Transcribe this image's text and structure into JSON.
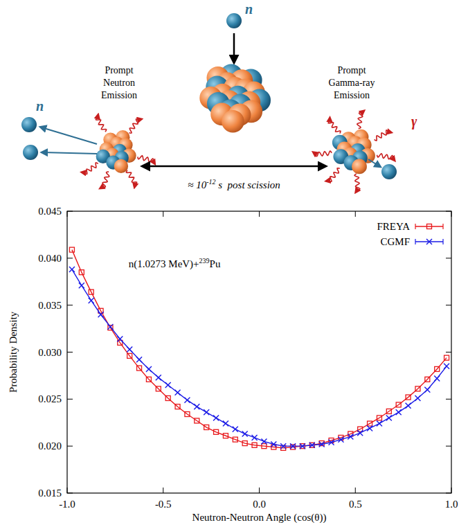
{
  "chart_data": {
    "type": "line",
    "annotation": {
      "prefix": "n(1.0273 MeV)+",
      "superscript": "239",
      "suffix": "Pu"
    },
    "x_label": "Neutron-Neutron Angle (cos(θ))",
    "y_label": "Probability Density",
    "x": [
      -0.975,
      -0.925,
      -0.875,
      -0.825,
      -0.775,
      -0.725,
      -0.675,
      -0.625,
      -0.575,
      -0.525,
      -0.475,
      -0.425,
      -0.375,
      -0.325,
      -0.275,
      -0.225,
      -0.175,
      -0.125,
      -0.075,
      -0.025,
      0.025,
      0.075,
      0.125,
      0.175,
      0.225,
      0.275,
      0.325,
      0.375,
      0.425,
      0.475,
      0.525,
      0.575,
      0.625,
      0.675,
      0.725,
      0.775,
      0.825,
      0.875,
      0.925,
      0.975
    ],
    "series": [
      {
        "name": "FREYA",
        "color": "#e8191c",
        "marker": "square",
        "line_style": "solid",
        "values": [
          0.0409,
          0.0385,
          0.0364,
          0.0344,
          0.0326,
          0.031,
          0.0296,
          0.0283,
          0.0271,
          0.0261,
          0.0251,
          0.0242,
          0.0234,
          0.0227,
          0.022,
          0.0215,
          0.0211,
          0.0207,
          0.0203,
          0.0201,
          0.02,
          0.0199,
          0.0198,
          0.0199,
          0.02,
          0.0201,
          0.0203,
          0.0206,
          0.0209,
          0.0213,
          0.0218,
          0.0224,
          0.023,
          0.0237,
          0.0244,
          0.0252,
          0.0261,
          0.0271,
          0.0282,
          0.0294
        ]
      },
      {
        "name": "CGMF",
        "color": "#1c1ce6",
        "marker": "x",
        "line_style": "solid",
        "values": [
          0.0388,
          0.0371,
          0.0355,
          0.034,
          0.0327,
          0.0314,
          0.0303,
          0.0292,
          0.0282,
          0.0273,
          0.0265,
          0.0257,
          0.0249,
          0.0242,
          0.0236,
          0.023,
          0.0224,
          0.0218,
          0.0213,
          0.0209,
          0.0205,
          0.0202,
          0.02,
          0.02,
          0.02,
          0.0201,
          0.0202,
          0.0204,
          0.0207,
          0.021,
          0.0214,
          0.0219,
          0.0224,
          0.023,
          0.0236,
          0.0243,
          0.0251,
          0.026,
          0.0272,
          0.0285
        ]
      }
    ],
    "xlim": [
      -1,
      1
    ],
    "ylim": [
      0.015,
      0.045
    ],
    "xticks": [
      {
        "value": -1,
        "label": "-1.0"
      },
      {
        "value": -0.5,
        "label": "-0.5"
      },
      {
        "value": 0,
        "label": "0.0"
      },
      {
        "value": 0.5,
        "label": "0.5"
      },
      {
        "value": 1,
        "label": "1.0"
      }
    ],
    "yticks": [
      {
        "value": 0.015,
        "label": "0.015"
      },
      {
        "value": 0.02,
        "label": "0.020"
      },
      {
        "value": 0.025,
        "label": "0.025"
      },
      {
        "value": 0.03,
        "label": "0.030"
      },
      {
        "value": 0.035,
        "label": "0.035"
      },
      {
        "value": 0.04,
        "label": "0.040"
      },
      {
        "value": 0.045,
        "label": "0.045"
      }
    ],
    "legend": "top-right",
    "grid": false
  },
  "diagram": {
    "incoming_label": "n",
    "left_title": [
      "Prompt",
      "Neutron",
      "Emission"
    ],
    "right_title": [
      "Prompt",
      "Gamma-ray",
      "Emission"
    ],
    "left_particle_label": "n",
    "right_particle_label": "γ",
    "time_label": {
      "prefix": "≈ 10",
      "superscript": "-12",
      "suffix": " s  post scission"
    }
  }
}
